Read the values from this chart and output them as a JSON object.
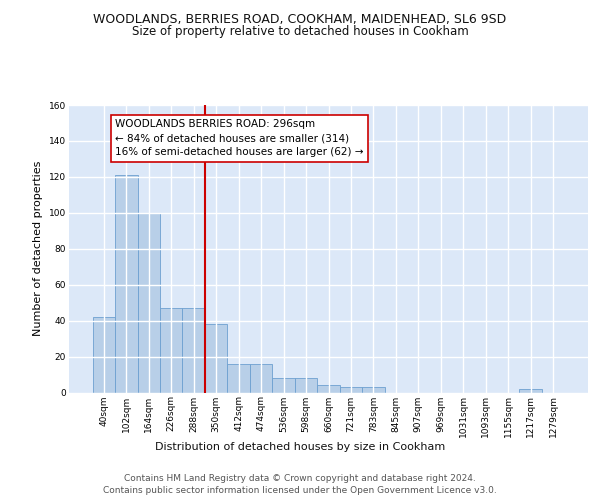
{
  "title": "WOODLANDS, BERRIES ROAD, COOKHAM, MAIDENHEAD, SL6 9SD",
  "subtitle": "Size of property relative to detached houses in Cookham",
  "xlabel": "Distribution of detached houses by size in Cookham",
  "ylabel": "Number of detached properties",
  "bar_labels": [
    "40sqm",
    "102sqm",
    "164sqm",
    "226sqm",
    "288sqm",
    "350sqm",
    "412sqm",
    "474sqm",
    "536sqm",
    "598sqm",
    "660sqm",
    "721sqm",
    "783sqm",
    "845sqm",
    "907sqm",
    "969sqm",
    "1031sqm",
    "1093sqm",
    "1155sqm",
    "1217sqm",
    "1279sqm"
  ],
  "bar_values": [
    42,
    121,
    100,
    47,
    47,
    38,
    16,
    16,
    8,
    8,
    4,
    3,
    3,
    0,
    0,
    0,
    0,
    0,
    0,
    2,
    0
  ],
  "bar_color": "#b8cfe8",
  "bar_edgecolor": "#6da0d0",
  "background_color": "#dce8f8",
  "grid_color": "#ffffff",
  "vline_x_index": 4.5,
  "vline_color": "#cc0000",
  "annotation_text": "WOODLANDS BERRIES ROAD: 296sqm\n← 84% of detached houses are smaller (314)\n16% of semi-detached houses are larger (62) →",
  "annotation_box_color": "#ffffff",
  "annotation_box_edgecolor": "#cc0000",
  "ylim": [
    0,
    160
  ],
  "yticks": [
    0,
    20,
    40,
    60,
    80,
    100,
    120,
    140,
    160
  ],
  "footer": "Contains HM Land Registry data © Crown copyright and database right 2024.\nContains public sector information licensed under the Open Government Licence v3.0.",
  "title_fontsize": 9,
  "subtitle_fontsize": 8.5,
  "ylabel_fontsize": 8,
  "xlabel_fontsize": 8,
  "tick_fontsize": 6.5,
  "annotation_fontsize": 7.5,
  "footer_fontsize": 6.5
}
